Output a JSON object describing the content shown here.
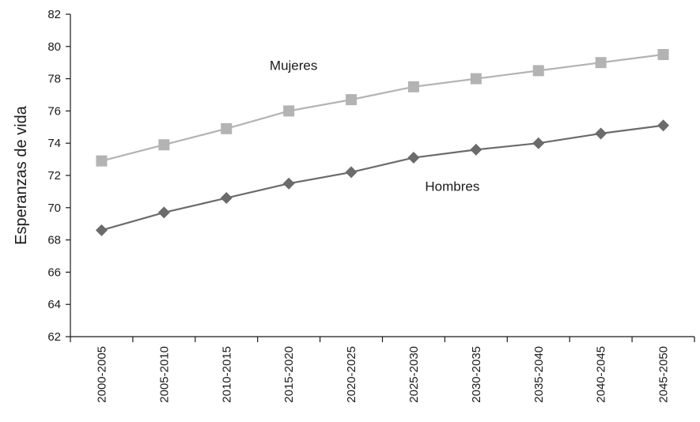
{
  "chart_data": {
    "type": "line",
    "title": "",
    "xlabel": "",
    "ylabel": "Esperanzas de vida",
    "ylim": [
      62,
      82
    ],
    "yticks": [
      62,
      64,
      66,
      68,
      70,
      72,
      74,
      76,
      78,
      80,
      82
    ],
    "grid": false,
    "legend": "none",
    "categories": [
      "2000-2005",
      "2005-2010",
      "2010-2015",
      "2015-2020",
      "2020-2025",
      "2025-2030",
      "2030-2035",
      "2035-2040",
      "2040-2045",
      "2045-2050"
    ],
    "series": [
      {
        "name": "Mujeres",
        "marker": "square",
        "color": "#b3b3b3",
        "values": [
          72.9,
          73.9,
          74.9,
          76.0,
          76.7,
          77.5,
          78.0,
          78.5,
          79.0,
          79.5
        ]
      },
      {
        "name": "Hombres",
        "marker": "diamond",
        "color": "#6b6b6b",
        "values": [
          68.6,
          69.7,
          70.6,
          71.5,
          72.2,
          73.1,
          73.6,
          74.0,
          74.6,
          75.1
        ]
      }
    ]
  }
}
